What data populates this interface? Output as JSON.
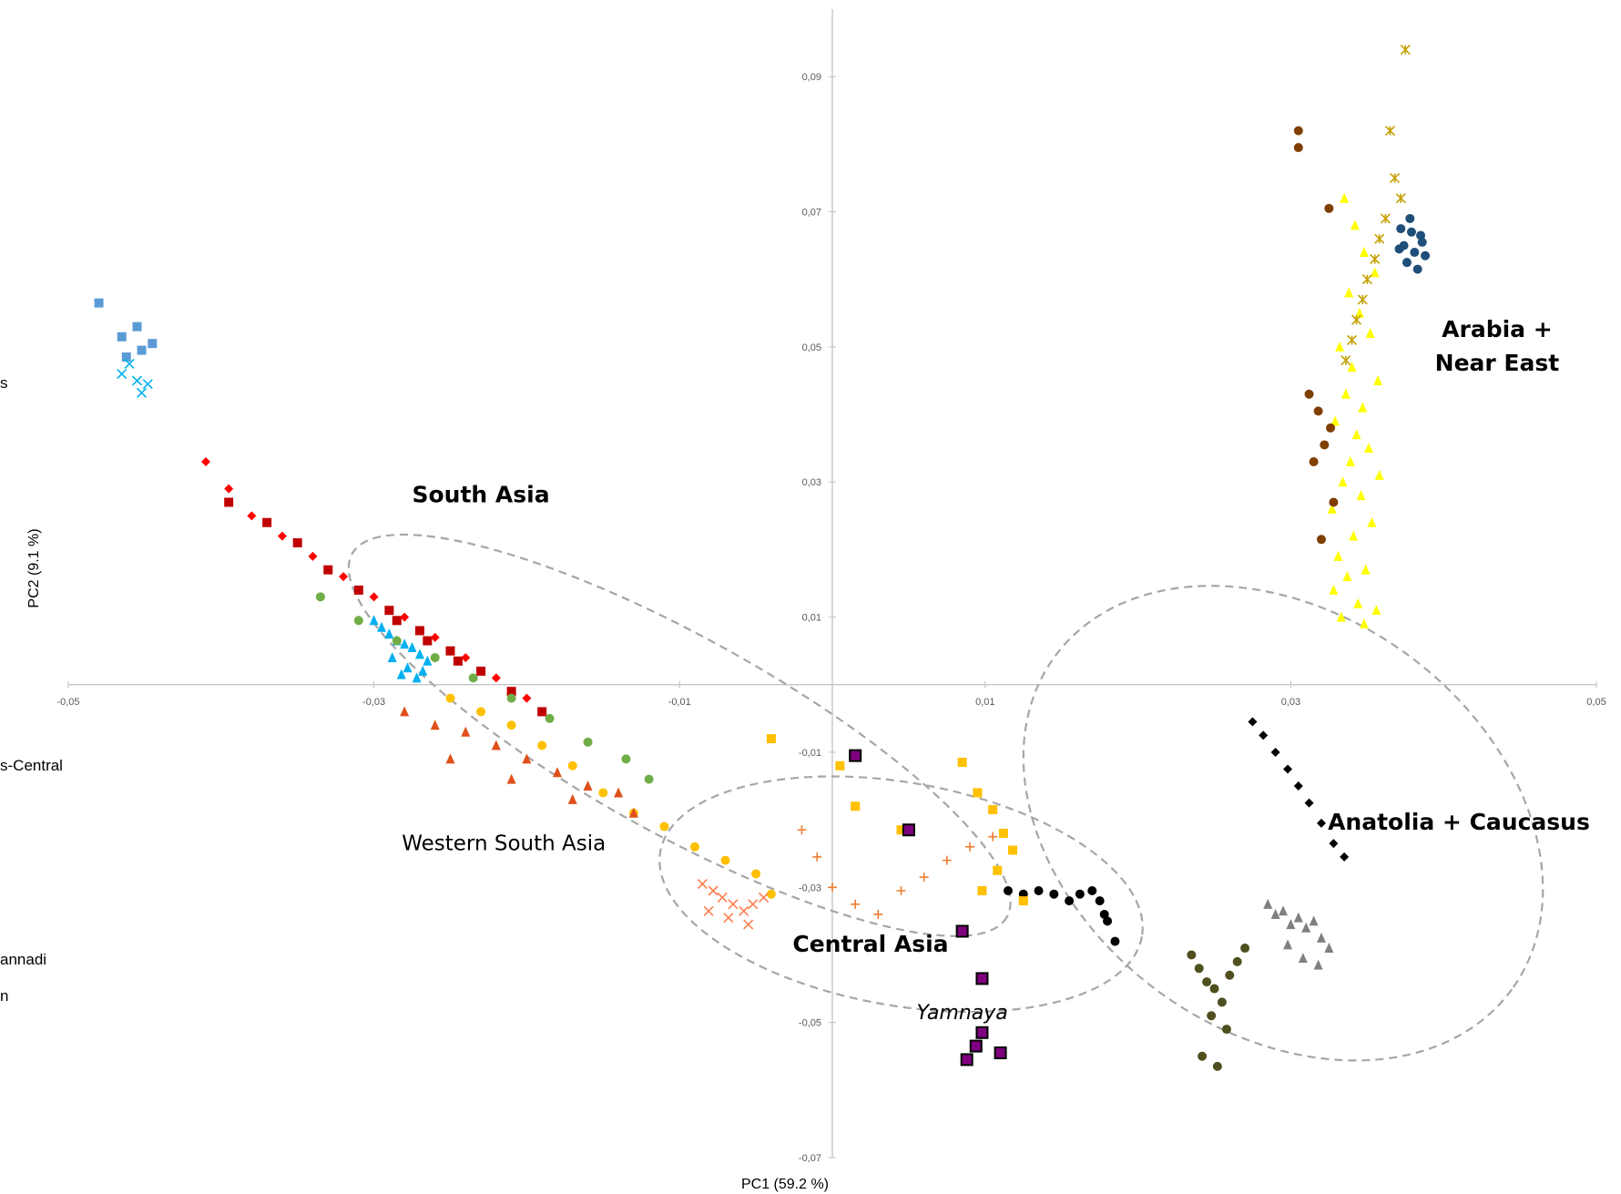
{
  "chart_data": {
    "type": "scatter",
    "title": "",
    "xlabel": "PC1 (59.2 %)",
    "ylabel": "PC2 (9.1 %)",
    "xlim": [
      -0.05,
      0.05
    ],
    "ylim": [
      -0.07,
      0.1
    ],
    "grid": false,
    "xticks": [
      "-0,05",
      "-0,03",
      "-0,01",
      "0,01",
      "0,03",
      "0,05"
    ],
    "yticks": [
      "0,09",
      "0,07",
      "0,05",
      "0,03",
      "0,01",
      "-0,01",
      "-0,03",
      "-0,05",
      "-0,07"
    ],
    "legend_fragments": [
      "s",
      "s-Central",
      "annadi",
      "n"
    ],
    "annotations": [
      {
        "text": "South Asia",
        "style": "bold",
        "x": -0.023,
        "y": 0.027
      },
      {
        "text": "Arabia +",
        "style": "bold",
        "x": 0.0435,
        "y": 0.0515
      },
      {
        "text": "Near East",
        "style": "bold",
        "x": 0.0435,
        "y": 0.0465
      },
      {
        "text": "Western South Asia",
        "style": "normal",
        "x": -0.0215,
        "y": -0.0245
      },
      {
        "text": "Central Asia",
        "style": "bold",
        "x": 0.0025,
        "y": -0.0395
      },
      {
        "text": "Yamnaya",
        "style": "italic",
        "x": 0.0085,
        "y": -0.0495
      },
      {
        "text": "Anatolia + Caucasus",
        "style": "bold",
        "x": 0.041,
        "y": -0.0215
      }
    ],
    "ellipses": [
      {
        "name": "western-south-asia",
        "cx": -0.01,
        "cy": -0.0075,
        "rx": 0.0245,
        "ry": 0.0145,
        "angle": 29
      },
      {
        "name": "central-asia",
        "cx": 0.0045,
        "cy": -0.031,
        "rx": 0.016,
        "ry": 0.0165,
        "angle": 10
      },
      {
        "name": "anatolia-caucasus",
        "cx": 0.0295,
        "cy": -0.0205,
        "rx": 0.0185,
        "ry": 0.031,
        "angle": 36
      }
    ],
    "series": [
      {
        "group": "Arabia + Near East",
        "color": "#ffff00",
        "marker": "triangle",
        "x": [
          0.0335,
          0.0342,
          0.0348,
          0.0355,
          0.0338,
          0.0345,
          0.0352,
          0.0332,
          0.034,
          0.0357,
          0.0336,
          0.0347,
          0.0329,
          0.0343,
          0.0351,
          0.0339,
          0.0358,
          0.0334,
          0.0346,
          0.0327,
          0.0353,
          0.0341,
          0.0331,
          0.0349,
          0.0337,
          0.0328,
          0.0344,
          0.0356,
          0.0333,
          0.0348
        ],
        "y": [
          0.072,
          0.068,
          0.064,
          0.061,
          0.058,
          0.055,
          0.052,
          0.05,
          0.047,
          0.045,
          0.043,
          0.041,
          0.039,
          0.037,
          0.035,
          0.033,
          0.031,
          0.03,
          0.028,
          0.026,
          0.024,
          0.022,
          0.019,
          0.017,
          0.016,
          0.014,
          0.012,
          0.011,
          0.01,
          0.009
        ]
      },
      {
        "group": "Arabia + Near East",
        "color": "#1f4e79",
        "marker": "circle",
        "x": [
          0.0372,
          0.0378,
          0.0385,
          0.0381,
          0.0376,
          0.0388,
          0.0374,
          0.0383,
          0.0379,
          0.0386,
          0.0371
        ],
        "y": [
          0.0675,
          0.069,
          0.0665,
          0.064,
          0.0625,
          0.0635,
          0.065,
          0.0615,
          0.067,
          0.0655,
          0.0645
        ]
      },
      {
        "group": "Arabia + Near East",
        "color": "#7f3f00",
        "marker": "circle",
        "x": [
          0.0305,
          0.0305,
          0.0325,
          0.0312,
          0.0318,
          0.0326,
          0.0322,
          0.0315,
          0.0328,
          0.032
        ],
        "y": [
          0.082,
          0.0795,
          0.0705,
          0.043,
          0.0405,
          0.038,
          0.0355,
          0.033,
          0.027,
          0.0215
        ]
      },
      {
        "group": "Arabia + Near East",
        "color": "#c5a000",
        "marker": "asterisk",
        "x": [
          0.0375,
          0.0365,
          0.0368,
          0.0372,
          0.0362,
          0.0358,
          0.0355,
          0.035,
          0.0347,
          0.0343,
          0.034,
          0.0336
        ],
        "y": [
          0.094,
          0.082,
          0.075,
          0.072,
          0.069,
          0.066,
          0.063,
          0.06,
          0.057,
          0.054,
          0.051,
          0.048
        ]
      },
      {
        "group": "Anatolia + Caucasus",
        "color": "#000000",
        "marker": "circle",
        "x": [
          0.0115,
          0.0125,
          0.0135,
          0.0145,
          0.0155,
          0.0162,
          0.017,
          0.0175,
          0.0178,
          0.018,
          0.0185
        ],
        "y": [
          -0.0305,
          -0.031,
          -0.0305,
          -0.031,
          -0.032,
          -0.031,
          -0.0305,
          -0.032,
          -0.034,
          -0.035,
          -0.038
        ]
      },
      {
        "group": "Anatolia + Caucasus",
        "color": "#808080",
        "marker": "triangle",
        "x": [
          0.0285,
          0.029,
          0.0295,
          0.03,
          0.0305,
          0.031,
          0.0315,
          0.032,
          0.0325,
          0.0298,
          0.0308,
          0.0318
        ],
        "y": [
          -0.0325,
          -0.034,
          -0.0335,
          -0.0355,
          -0.0345,
          -0.036,
          -0.035,
          -0.0375,
          -0.039,
          -0.0385,
          -0.0405,
          -0.0415
        ]
      },
      {
        "group": "Anatolia + Caucasus",
        "color": "#4f4f1f",
        "marker": "circle",
        "x": [
          0.0235,
          0.024,
          0.0245,
          0.025,
          0.0255,
          0.026,
          0.0265,
          0.027,
          0.0248,
          0.0258,
          0.0242,
          0.0252
        ],
        "y": [
          -0.04,
          -0.042,
          -0.044,
          -0.045,
          -0.047,
          -0.043,
          -0.041,
          -0.039,
          -0.049,
          -0.051,
          -0.055,
          -0.0565
        ]
      },
      {
        "group": "Anatolia + Caucasus",
        "color": "#000000",
        "marker": "diamond",
        "x": [
          0.0275,
          0.0282,
          0.029,
          0.0298,
          0.0305,
          0.0312,
          0.032,
          0.0328,
          0.0335
        ],
        "y": [
          -0.0055,
          -0.0075,
          -0.01,
          -0.0125,
          -0.015,
          -0.0175,
          -0.0205,
          -0.0235,
          -0.0255
        ]
      },
      {
        "group": "Central Asia",
        "color": "#ffc000",
        "marker": "square",
        "x": [
          -0.004,
          0.0005,
          0.0015,
          0.0045,
          0.0085,
          0.0095,
          0.0105,
          0.0112,
          0.0118,
          0.0108,
          0.0098,
          0.0125
        ],
        "y": [
          -0.008,
          -0.012,
          -0.018,
          -0.0215,
          -0.0115,
          -0.016,
          -0.0185,
          -0.022,
          -0.0245,
          -0.0275,
          -0.0305,
          -0.032
        ]
      },
      {
        "group": "Central Asia",
        "color": "#ed7d31",
        "marker": "plus",
        "x": [
          -0.002,
          -0.001,
          0.0,
          0.0015,
          0.003,
          0.0045,
          0.006,
          0.0075,
          0.009,
          0.0105
        ],
        "y": [
          -0.0215,
          -0.0255,
          -0.03,
          -0.0325,
          -0.034,
          -0.0305,
          -0.0285,
          -0.026,
          -0.024,
          -0.0225
        ]
      },
      {
        "group": "Western South Asia",
        "color": "#ffc000",
        "marker": "circle",
        "x": [
          -0.025,
          -0.023,
          -0.021,
          -0.019,
          -0.017,
          -0.015,
          -0.013,
          -0.011,
          -0.009,
          -0.007,
          -0.005,
          -0.004
        ],
        "y": [
          -0.002,
          -0.004,
          -0.006,
          -0.009,
          -0.012,
          -0.016,
          -0.019,
          -0.021,
          -0.024,
          -0.026,
          -0.028,
          -0.031
        ]
      },
      {
        "group": "Western South Asia",
        "color": "#ff7f50",
        "marker": "cross",
        "x": [
          -0.0085,
          -0.0078,
          -0.0072,
          -0.0065,
          -0.0058,
          -0.0052,
          -0.0045,
          -0.0081,
          -0.0068,
          -0.0055
        ],
        "y": [
          -0.0295,
          -0.0305,
          -0.0315,
          -0.0325,
          -0.0335,
          -0.0325,
          -0.0315,
          -0.0335,
          -0.0345,
          -0.0355
        ]
      },
      {
        "group": "South Asia",
        "color": "#c00000",
        "marker": "square",
        "x": [
          -0.0395,
          -0.037,
          -0.035,
          -0.033,
          -0.031,
          -0.029,
          -0.027,
          -0.025,
          -0.023,
          -0.021,
          -0.019,
          -0.0285,
          -0.0265,
          -0.0245
        ],
        "y": [
          0.027,
          0.024,
          0.021,
          0.017,
          0.014,
          0.011,
          0.008,
          0.005,
          0.002,
          -0.001,
          -0.004,
          0.0095,
          0.0065,
          0.0035
        ]
      },
      {
        "group": "South Asia",
        "color": "#ff0000",
        "marker": "diamond",
        "x": [
          -0.041,
          -0.0395,
          -0.038,
          -0.036,
          -0.034,
          -0.032,
          -0.03,
          -0.028,
          -0.026,
          -0.024,
          -0.022,
          -0.02
        ],
        "y": [
          0.033,
          0.029,
          0.025,
          0.022,
          0.019,
          0.016,
          0.013,
          0.01,
          0.007,
          0.004,
          0.001,
          -0.002
        ]
      },
      {
        "group": "South Asia",
        "color": "#00b0f0",
        "marker": "triangle",
        "x": [
          -0.03,
          -0.0295,
          -0.029,
          -0.0285,
          -0.028,
          -0.0275,
          -0.027,
          -0.0265,
          -0.0288,
          -0.0278,
          -0.0268,
          -0.0282,
          -0.0272
        ],
        "y": [
          0.0095,
          0.0085,
          0.0075,
          0.0065,
          0.006,
          0.0055,
          0.0045,
          0.0035,
          0.004,
          0.0025,
          0.002,
          0.0015,
          0.001
        ]
      },
      {
        "group": "South Asia",
        "color": "#e0501a",
        "marker": "triangle",
        "x": [
          -0.028,
          -0.026,
          -0.024,
          -0.022,
          -0.02,
          -0.018,
          -0.016,
          -0.014,
          -0.025,
          -0.021,
          -0.017,
          -0.013
        ],
        "y": [
          -0.004,
          -0.006,
          -0.007,
          -0.009,
          -0.011,
          -0.013,
          -0.015,
          -0.016,
          -0.011,
          -0.014,
          -0.017,
          -0.019
        ]
      },
      {
        "group": "South Asia",
        "color": "#70ad47",
        "marker": "circle",
        "x": [
          -0.0335,
          -0.031,
          -0.0285,
          -0.026,
          -0.0235,
          -0.021,
          -0.0185,
          -0.016,
          -0.0135,
          -0.012
        ],
        "y": [
          0.013,
          0.0095,
          0.0065,
          0.004,
          0.001,
          -0.002,
          -0.005,
          -0.0085,
          -0.011,
          -0.014
        ]
      },
      {
        "group": "Outliers (upper left)",
        "color": "#5b9bd5",
        "marker": "square",
        "x": [
          -0.048,
          -0.0465,
          -0.0455,
          -0.0445,
          -0.0462,
          -0.0452
        ],
        "y": [
          0.0565,
          0.0515,
          0.053,
          0.0505,
          0.0485,
          0.0495
        ]
      },
      {
        "group": "Outliers (upper left)",
        "color": "#00b0f0",
        "marker": "cross",
        "x": [
          -0.0465,
          -0.0455,
          -0.0448,
          -0.046,
          -0.0452
        ],
        "y": [
          0.046,
          0.045,
          0.0445,
          0.0475,
          0.0432
        ]
      },
      {
        "group": "Yamnaya",
        "color": "#7f007f",
        "marker": "square-outlined",
        "x": [
          0.0015,
          0.005,
          0.0085,
          0.0098,
          0.0098,
          0.0094,
          0.011,
          0.0088
        ],
        "y": [
          -0.0105,
          -0.0215,
          -0.0365,
          -0.0435,
          -0.0515,
          -0.0535,
          -0.0545,
          -0.0555
        ]
      }
    ]
  }
}
